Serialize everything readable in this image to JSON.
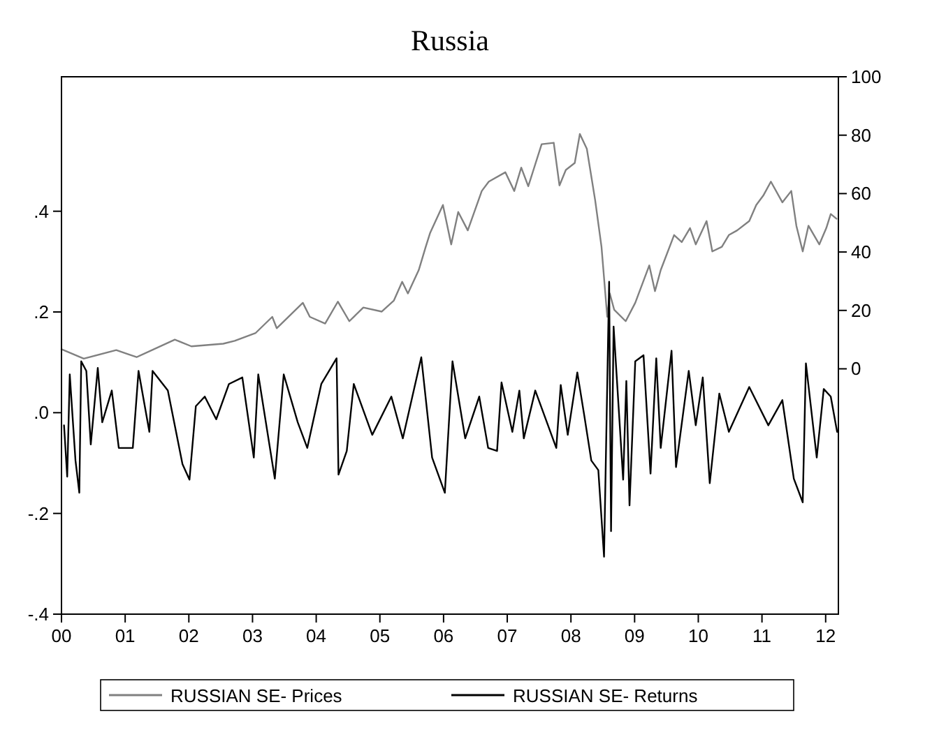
{
  "chart_data": {
    "type": "line",
    "title": "Russia",
    "legend": "bottom",
    "grid": false,
    "xlim": [
      2000,
      2012.2
    ],
    "xticks": [
      {
        "value": 2000,
        "label": "00"
      },
      {
        "value": 2001,
        "label": "01"
      },
      {
        "value": 2002,
        "label": "02"
      },
      {
        "value": 2003,
        "label": "03"
      },
      {
        "value": 2004,
        "label": "04"
      },
      {
        "value": 2005,
        "label": "05"
      },
      {
        "value": 2006,
        "label": "06"
      },
      {
        "value": 2007,
        "label": "07"
      },
      {
        "value": 2008,
        "label": "08"
      },
      {
        "value": 2009,
        "label": "09"
      },
      {
        "value": 2010,
        "label": "10"
      },
      {
        "value": 2011,
        "label": "11"
      },
      {
        "value": 2012,
        "label": "12"
      }
    ],
    "ylim": [
      -0.4,
      0.667
    ],
    "yticks": [
      {
        "value": -0.4,
        "label": "-.4"
      },
      {
        "value": -0.2,
        "label": "-.2"
      },
      {
        "value": 0,
        "label": ".0"
      },
      {
        "value": 0.2,
        "label": ".2"
      },
      {
        "value": 0.4,
        "label": ".4"
      }
    ],
    "y2lim": [
      -84,
      100
    ],
    "y2ticks": [
      0,
      20,
      40,
      60,
      80,
      100
    ],
    "series": [
      {
        "name": "RUSSIAN SE- Prices",
        "color": "#808080",
        "axis": "y2",
        "x": [
          2000.0,
          2000.35,
          2000.86,
          2001.18,
          2001.78,
          2002.04,
          2002.54,
          2002.72,
          2003.05,
          2003.31,
          2003.38,
          2003.79,
          2003.9,
          2004.14,
          2004.34,
          2004.52,
          2004.74,
          2005.03,
          2005.22,
          2005.35,
          2005.44,
          2005.61,
          2005.72,
          2005.79,
          2005.99,
          2006.12,
          2006.23,
          2006.38,
          2006.6,
          2006.71,
          2006.97,
          2007.11,
          2007.22,
          2007.33,
          2007.54,
          2007.73,
          2007.82,
          2007.92,
          2008.06,
          2008.14,
          2008.25,
          2008.38,
          2008.48,
          2008.57,
          2008.61,
          2008.68,
          2008.86,
          2009.01,
          2009.23,
          2009.32,
          2009.41,
          2009.62,
          2009.74,
          2009.87,
          2009.96,
          2010.13,
          2010.22,
          2010.37,
          2010.48,
          2010.61,
          2010.8,
          2010.91,
          2011.02,
          2011.14,
          2011.32,
          2011.46,
          2011.54,
          2011.64,
          2011.73,
          2011.9,
          2012.01,
          2012.08,
          2012.17
        ],
        "values": [
          6.7,
          3.5,
          6.4,
          4.0,
          10,
          7.7,
          8.6,
          9.6,
          12.3,
          17.8,
          13.9,
          22.6,
          17.8,
          15.5,
          23,
          16.3,
          21,
          19.6,
          23.4,
          29.8,
          25.8,
          33.8,
          41.8,
          46.6,
          56.1,
          42.6,
          53.7,
          47.4,
          60.9,
          64.1,
          67.3,
          60.9,
          68.9,
          62.5,
          76.9,
          77.4,
          62.8,
          68.1,
          70.5,
          80.4,
          75.3,
          57.8,
          41.8,
          17.8,
          25.8,
          20.2,
          16.3,
          22.6,
          35.4,
          26.6,
          33.8,
          45.8,
          43.4,
          48.2,
          42.6,
          50.6,
          40.2,
          41.8,
          45.8,
          47.4,
          50.6,
          56.1,
          59.3,
          64.1,
          57,
          60.9,
          49,
          40.2,
          49,
          42.6,
          48.2,
          53,
          51.4
        ]
      },
      {
        "name": "RUSSIAN SE- Returns",
        "color": "#000000",
        "x": [
          2000.04,
          2000.09,
          2000.13,
          2000.22,
          2000.28,
          2000.31,
          2000.39,
          2000.46,
          2000.57,
          2000.64,
          2000.79,
          2000.9,
          2001.12,
          2001.21,
          2001.38,
          2001.43,
          2001.67,
          2001.9,
          2002.01,
          2002.11,
          2002.25,
          2002.43,
          2002.63,
          2002.84,
          2003.02,
          2003.09,
          2003.35,
          2003.49,
          2003.71,
          2003.86,
          2004.08,
          2004.32,
          2004.35,
          2004.48,
          2004.59,
          2004.88,
          2005.18,
          2005.36,
          2005.65,
          2005.82,
          2006.02,
          2006.14,
          2006.34,
          2006.56,
          2006.7,
          2006.84,
          2006.91,
          2007.08,
          2007.19,
          2007.26,
          2007.44,
          2007.77,
          2007.84,
          2007.95,
          2008.1,
          2008.21,
          2008.32,
          2008.43,
          2008.52,
          2008.6,
          2008.63,
          2008.67,
          2008.82,
          2008.87,
          2008.92,
          2009.01,
          2009.14,
          2009.25,
          2009.34,
          2009.41,
          2009.58,
          2009.65,
          2009.85,
          2009.96,
          2010.07,
          2010.18,
          2010.33,
          2010.48,
          2010.8,
          2011.1,
          2011.32,
          2011.5,
          2011.64,
          2011.69,
          2011.86,
          2011.97,
          2012.08,
          2012.18
        ],
        "values": [
          -0.025,
          -0.127,
          0.076,
          -0.095,
          -0.159,
          0.102,
          0.083,
          -0.063,
          0.089,
          -0.019,
          0.044,
          -0.07,
          -0.07,
          0.083,
          -0.038,
          0.083,
          0.044,
          -0.102,
          -0.133,
          0.013,
          0.032,
          -0.013,
          0.057,
          0.07,
          -0.089,
          0.076,
          -0.131,
          0.076,
          -0.019,
          -0.07,
          0.057,
          0.108,
          -0.123,
          -0.076,
          0.057,
          -0.044,
          0.032,
          -0.051,
          0.11,
          -0.089,
          -0.159,
          0.102,
          -0.051,
          0.032,
          -0.07,
          -0.076,
          0.06,
          -0.038,
          0.044,
          -0.051,
          0.044,
          -0.07,
          0.055,
          -0.044,
          0.08,
          -0.006,
          -0.095,
          -0.114,
          -0.286,
          0.26,
          -0.235,
          0.171,
          -0.133,
          0.063,
          -0.184,
          0.102,
          0.114,
          -0.121,
          0.108,
          -0.07,
          0.123,
          -0.108,
          0.083,
          -0.025,
          0.07,
          -0.14,
          0.038,
          -0.038,
          0.051,
          -0.025,
          0.025,
          -0.131,
          -0.178,
          0.098,
          -0.089,
          0.047,
          0.032,
          -0.038
        ]
      }
    ]
  }
}
